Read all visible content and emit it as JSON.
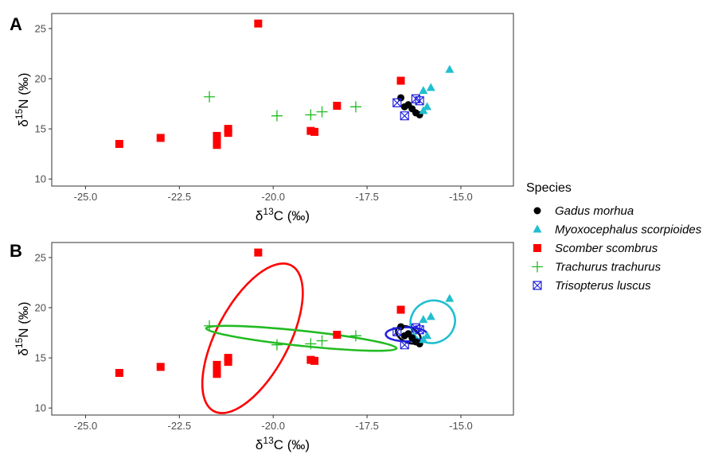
{
  "legend": {
    "title": "Species",
    "entries": [
      {
        "name": "Gadus morhua",
        "shape": "circle",
        "color": "#000000"
      },
      {
        "name": "Myoxocephalus scorpioides",
        "shape": "triangle",
        "color": "#1fbfcf"
      },
      {
        "name": "Scomber scombrus",
        "shape": "square",
        "color": "#ff0000"
      },
      {
        "name": "Trachurus trachurus",
        "shape": "plus",
        "color": "#22bb22"
      },
      {
        "name": "Trisopterus luscus",
        "shape": "boxx",
        "color": "#2222dd"
      }
    ]
  },
  "chart_data": [
    {
      "type": "scatter",
      "panel_label": "A",
      "xlabel": "δ13C (‰)",
      "ylabel": "δ15N (‰)",
      "xlim": [
        -25.9,
        -13.6
      ],
      "ylim": [
        9.3,
        26.5
      ],
      "xticks": [
        "-25.0",
        "-22.5",
        "-20.0",
        "-17.5",
        "-15.0"
      ],
      "xtick_values": [
        -25.0,
        -22.5,
        -20.0,
        -17.5,
        -15.0
      ],
      "yticks": [
        "10",
        "15",
        "20",
        "25"
      ],
      "ytick_values": [
        10,
        15,
        20,
        25
      ],
      "grid": false,
      "ellipses": false
    },
    {
      "type": "scatter",
      "panel_label": "B",
      "xlabel": "δ13C (‰)",
      "ylabel": "δ15N (‰)",
      "xlim": [
        -25.9,
        -13.6
      ],
      "ylim": [
        9.3,
        26.5
      ],
      "xticks": [
        "-25.0",
        "-22.5",
        "-20.0",
        "-17.5",
        "-15.0"
      ],
      "xtick_values": [
        -25.0,
        -22.5,
        -20.0,
        -17.5,
        -15.0
      ],
      "yticks": [
        "10",
        "15",
        "20",
        "25"
      ],
      "ytick_values": [
        10,
        15,
        20,
        25
      ],
      "grid": false,
      "ellipses": true
    }
  ],
  "series": [
    {
      "name": "Gadus morhua",
      "points": [
        [
          -16.6,
          18.1
        ],
        [
          -16.5,
          17.2
        ],
        [
          -16.4,
          17.4
        ],
        [
          -16.3,
          17.0
        ],
        [
          -16.2,
          16.6
        ],
        [
          -16.1,
          16.4
        ]
      ],
      "ellipse": {
        "cx": -16.4,
        "cy": 17.3,
        "rx": 0.35,
        "ry": 0.75,
        "angle": -25
      }
    },
    {
      "name": "Myoxocephalus scorpioides",
      "points": [
        [
          -15.3,
          20.9
        ],
        [
          -15.8,
          19.1
        ],
        [
          -16.0,
          18.8
        ],
        [
          -15.9,
          17.2
        ],
        [
          -16.0,
          16.8
        ]
      ],
      "ellipse": {
        "cx": -15.75,
        "cy": 18.6,
        "rx": 0.6,
        "ry": 2.1,
        "angle": 25
      }
    },
    {
      "name": "Scomber scombrus",
      "points": [
        [
          -20.4,
          25.5
        ],
        [
          -16.6,
          19.8
        ],
        [
          -18.3,
          17.3
        ],
        [
          -19.0,
          14.8
        ],
        [
          -18.9,
          14.7
        ],
        [
          -21.2,
          15.0
        ],
        [
          -21.2,
          14.6
        ],
        [
          -21.5,
          14.3
        ],
        [
          -21.5,
          13.8
        ],
        [
          -21.5,
          13.4
        ],
        [
          -23.0,
          14.1
        ],
        [
          -24.1,
          13.5
        ]
      ],
      "ellipse": {
        "cx": -20.55,
        "cy": 16.95,
        "rx": 2.2,
        "ry": 3.6,
        "angle": 62
      }
    },
    {
      "name": "Trachurus trachurus",
      "points": [
        [
          -21.7,
          18.2
        ],
        [
          -19.9,
          16.3
        ],
        [
          -19.0,
          16.4
        ],
        [
          -18.7,
          16.7
        ],
        [
          -17.8,
          17.2
        ]
      ],
      "ellipse": {
        "cx": -19.25,
        "cy": 16.95,
        "rx": 2.55,
        "ry": 0.75,
        "angle": -6
      }
    },
    {
      "name": "Trisopterus luscus",
      "points": [
        [
          -16.7,
          17.6
        ],
        [
          -16.5,
          16.3
        ],
        [
          -16.2,
          18.0
        ],
        [
          -16.1,
          17.8
        ]
      ],
      "ellipse": {
        "cx": -16.45,
        "cy": 17.35,
        "rx": 0.55,
        "ry": 0.7,
        "angle": 0
      }
    }
  ]
}
